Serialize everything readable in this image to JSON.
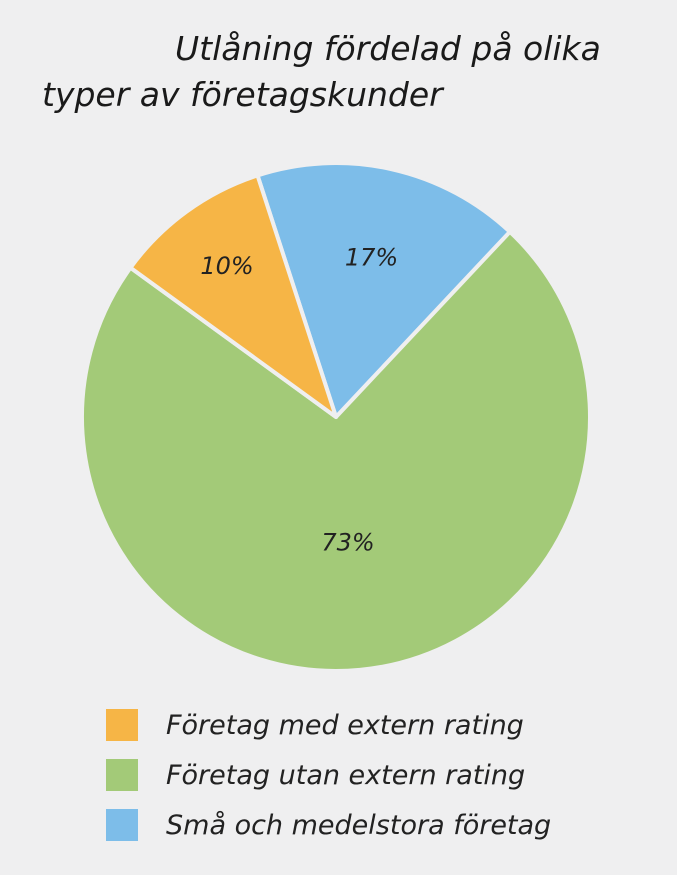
{
  "title": {
    "line1": "Utlåning fördelad på olika",
    "line2": "typer av företagskunder"
  },
  "chart_data": {
    "type": "pie",
    "title": "Utlåning fördelad på olika typer av företagskunder",
    "start_angle_deg": -18,
    "legend_position": "bottom",
    "slices": [
      {
        "name": "Små och medelstora företag",
        "value": 17,
        "label": "17%",
        "color": "#7dbde9"
      },
      {
        "name": "Företag utan extern rating",
        "value": 73,
        "label": "73%",
        "color": "#a3ca78"
      },
      {
        "name": "Företag med extern rating",
        "value": 10,
        "label": "10%",
        "color": "#f6b546"
      }
    ],
    "legend": [
      {
        "label": "Företag med extern rating",
        "color": "#f6b546"
      },
      {
        "label": "Företag utan extern rating",
        "color": "#a3ca78"
      },
      {
        "label": "Små och medelstora företag",
        "color": "#7dbde9"
      }
    ]
  }
}
